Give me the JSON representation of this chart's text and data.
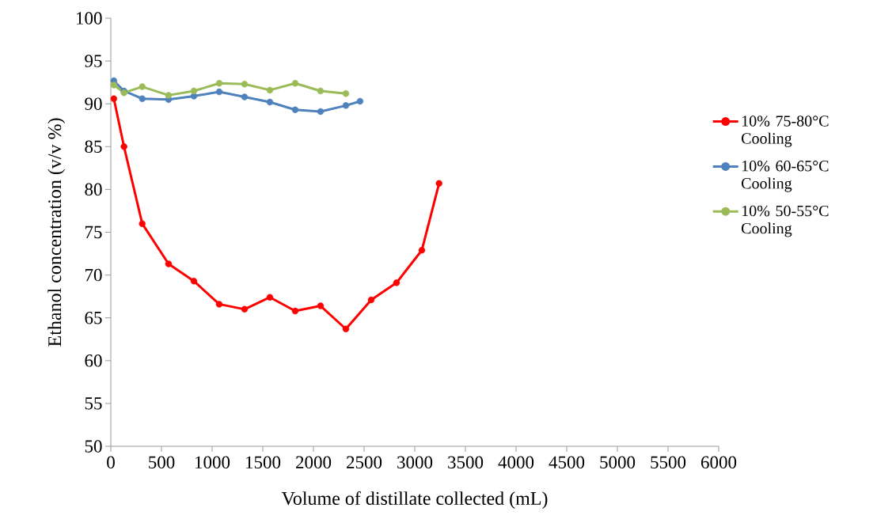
{
  "chart_data": {
    "type": "line",
    "xlabel": "Volume of distillate collected (mL)",
    "ylabel": "Ethanol concentration (v/v  %)",
    "xlim": [
      0,
      6000
    ],
    "ylim": [
      50,
      100
    ],
    "xticks": [
      0,
      500,
      1000,
      1500,
      2000,
      2500,
      3000,
      3500,
      4000,
      4500,
      5000,
      5500,
      6000
    ],
    "yticks": [
      50,
      55,
      60,
      65,
      70,
      75,
      80,
      85,
      90,
      95,
      100
    ],
    "grid": false,
    "legend": "right",
    "marker": "circle",
    "line_style": "solid",
    "series": [
      {
        "name": "10% 75-80°C Cooling",
        "color": "#ff0000",
        "x": [
          30,
          130,
          310,
          570,
          820,
          1070,
          1320,
          1570,
          1820,
          2070,
          2320,
          2570,
          2820,
          3070,
          3240
        ],
        "values": [
          90.6,
          85.0,
          76.0,
          71.3,
          69.3,
          66.6,
          66.0,
          67.4,
          65.8,
          66.4,
          63.7,
          67.1,
          69.1,
          72.9,
          80.7
        ]
      },
      {
        "name": "10% 60-65°C Cooling",
        "color": "#4f81bd",
        "x": [
          30,
          130,
          310,
          570,
          820,
          1070,
          1320,
          1570,
          1820,
          2070,
          2320,
          2460
        ],
        "values": [
          92.7,
          91.5,
          90.6,
          90.5,
          90.9,
          91.4,
          90.8,
          90.2,
          89.3,
          89.1,
          89.8,
          90.3
        ]
      },
      {
        "name": "10% 50-55°C Cooling",
        "color": "#9bbb59",
        "x": [
          30,
          130,
          310,
          570,
          820,
          1070,
          1320,
          1570,
          1820,
          2070,
          2320
        ],
        "values": [
          92.2,
          91.3,
          92.0,
          91.0,
          91.5,
          92.4,
          92.3,
          91.6,
          92.4,
          91.5,
          91.2
        ]
      }
    ]
  }
}
